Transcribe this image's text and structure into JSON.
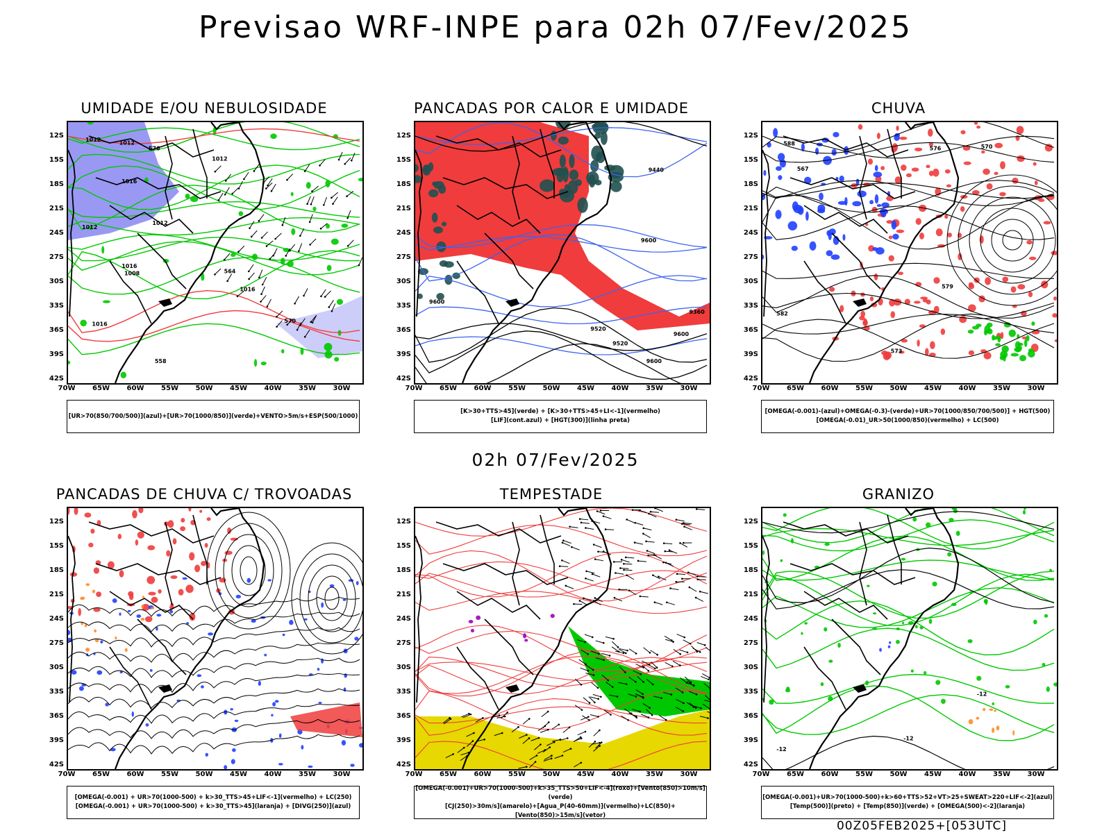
{
  "title": "Previsao WRF-INPE  para 02h 07/Fev/2025",
  "mid_title": "02h 07/Fev/2025",
  "footer": "00Z05FEB2025+[053UTC]",
  "axes": {
    "lat_labels": [
      "12S",
      "15S",
      "18S",
      "21S",
      "24S",
      "27S",
      "30S",
      "33S",
      "36S",
      "39S",
      "42S"
    ],
    "lon_labels": [
      "70W",
      "65W",
      "60W",
      "55W",
      "50W",
      "45W",
      "40W",
      "35W",
      "30W"
    ]
  },
  "colors": {
    "blue_shade": "#8080f0",
    "light_blue": "#c8c8f8",
    "green": "#00c800",
    "red": "#f03c3c",
    "dark_teal": "#205050",
    "blue_line": "#3c64f0",
    "bright_blue": "#2040ff",
    "orange": "#ff8c28",
    "yellow": "#e6d800",
    "purple": "#a000c0"
  },
  "panels": [
    {
      "id": "umidade",
      "title": "UMIDADE E/OU NEBULOSIDADE",
      "legend": [
        "[UR>70(850/700/500)](azul)+[UR>70(1000/850)](verde)+VENTO>5m/s+ESP(500/1000)"
      ],
      "contour_labels": [
        "1012",
        "1012",
        "1016",
        "1012",
        "1016",
        "1016",
        "1012",
        "1008",
        "1012",
        "1016",
        "576",
        "570",
        "564",
        "558"
      ]
    },
    {
      "id": "pancadas-calor",
      "title": "PANCADAS POR CALOR E UMIDADE",
      "legend": [
        "[K>30+TTS>45](verde) + [K>30+TTS>45+LI<-1](vermelho)",
        "[LIF](cont.azul) + [HGT(300)](linha preta)"
      ],
      "contour_labels": [
        "9600",
        "9600",
        "9600",
        "9520",
        "9440",
        "9360",
        "9600",
        "9520"
      ]
    },
    {
      "id": "chuva",
      "title": "CHUVA",
      "legend": [
        "[OMEGA(-0.001)-(azul)+OMEGA(-0.3)-(verde)+UR>70(1000/850/700/500)] + HGT(500)",
        "[OMEGA(-0.01)_UR>50(1000/850)(vermelho) + LC(500)"
      ],
      "contour_labels": [
        "582",
        "576",
        "573",
        "570",
        "567",
        "579",
        "588"
      ]
    },
    {
      "id": "pancadas-trovoadas",
      "title": "PANCADAS DE CHUVA C/ TROVOADAS",
      "legend": [
        "[OMEGA(-0.001) + UR>70(1000-500) + k>30_TTS>45+LIF<-1](vermelho) + LC(250)",
        "[OMEGA(-0.001) + UR>70(1000-500) + k>30_TTS>45](laranja) + [DIVG(250)](azul)"
      ],
      "contour_labels": []
    },
    {
      "id": "tempestade",
      "title": "TEMPESTADE",
      "legend": [
        "[OMEGA(-0.001)+UR>70(1000-500)+k>35_TTS>50+LIF<-4](roxo)+[Vento(850)>10m/s](verde)",
        "[CJ(250)>30m/s](amarelo)+[Agua_P(40-60mm)](vermelho)+LC(850)+[Vento(850)>15m/s](vetor)"
      ],
      "contour_labels": []
    },
    {
      "id": "granizo",
      "title": "GRANIZO",
      "legend": [
        "[OMEGA(-0.001)+UR>70(1000-500)+k>60+TTS>52+VT>25+SWEAT>220+LIF<-2](azul)",
        "[Temp(500)](preto) + [Temp(850)](verde) + [OMEGA(500)<-2](laranja)"
      ],
      "contour_labels": [
        "-12",
        "-12",
        "-12"
      ]
    }
  ]
}
